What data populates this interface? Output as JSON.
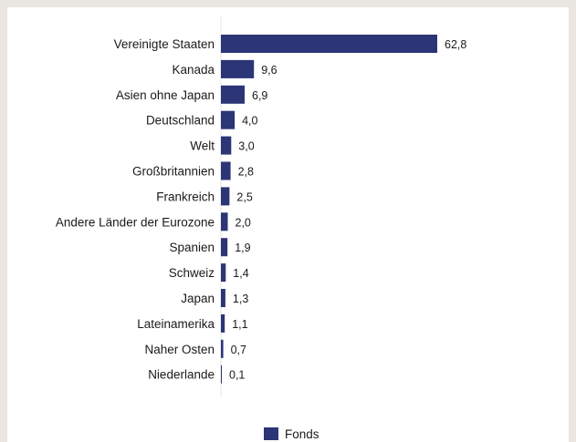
{
  "chart_data": {
    "type": "bar",
    "orientation": "horizontal",
    "categories": [
      "Vereinigte Staaten",
      "Kanada",
      "Asien ohne Japan",
      "Deutschland",
      "Welt",
      "Großbritannien",
      "Frankreich",
      "Andere Länder der Eurozone",
      "Spanien",
      "Schweiz",
      "Japan",
      "Lateinamerika",
      "Naher Osten",
      "Niederlande"
    ],
    "series": [
      {
        "name": "Fonds",
        "color": "#2c3576",
        "values": [
          62.8,
          9.6,
          6.9,
          4.0,
          3.0,
          2.8,
          2.5,
          2.0,
          1.9,
          1.4,
          1.3,
          1.1,
          0.7,
          0.1
        ],
        "value_labels": [
          "62,8",
          "9,6",
          "6,9",
          "4,0",
          "3,0",
          "2,8",
          "2,5",
          "2,0",
          "1,9",
          "1,4",
          "1,3",
          "1,1",
          "0,7",
          "0,1"
        ]
      }
    ],
    "xlim": [
      0,
      62.8
    ],
    "grid": false,
    "legend": {
      "placement": "bottom-center",
      "entries": [
        "Fonds"
      ]
    }
  }
}
